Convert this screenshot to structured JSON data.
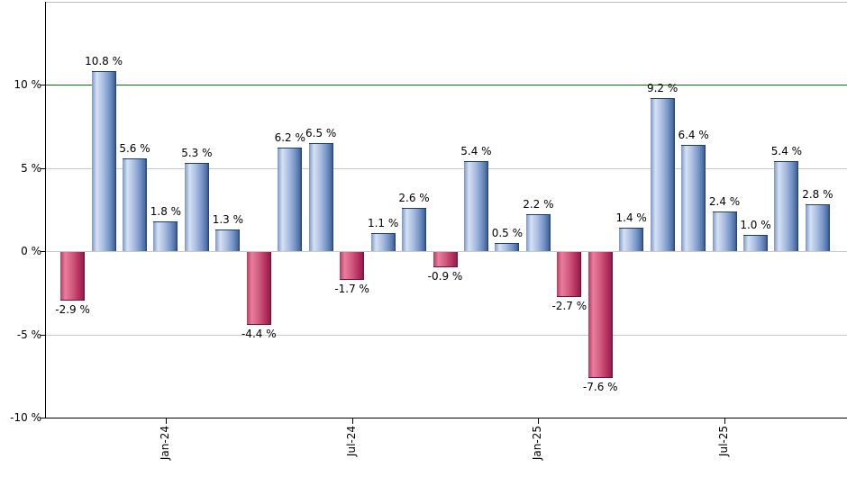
{
  "chart_data": {
    "type": "bar",
    "title": "",
    "xlabel": "",
    "ylabel": "",
    "ylim": [
      -10,
      15
    ],
    "grid": true,
    "values": [
      -2.9,
      10.8,
      5.6,
      1.8,
      5.3,
      1.3,
      -4.4,
      6.2,
      6.5,
      -1.7,
      1.1,
      2.6,
      -0.9,
      5.4,
      0.5,
      2.2,
      -2.7,
      -7.6,
      1.4,
      9.2,
      6.4,
      2.4,
      1.0,
      5.4,
      2.8
    ],
    "bar_labels": [
      "-2.9 %",
      "10.8 %",
      "5.6 %",
      "1.8 %",
      "5.3 %",
      "1.3 %",
      "-4.4 %",
      "6.2 %",
      "6.5 %",
      "-1.7 %",
      "1.1 %",
      "2.6 %",
      "-0.9 %",
      "5.4 %",
      "0.5 %",
      "2.2 %",
      "-2.7 %",
      "-7.6 %",
      "1.4 %",
      "9.2 %",
      "6.4 %",
      "2.4 %",
      "1.0 %",
      "5.4 %",
      "2.8 %"
    ],
    "x_ticks": [
      {
        "index": 3,
        "label": "Jan-24"
      },
      {
        "index": 9,
        "label": "Jul-24"
      },
      {
        "index": 15,
        "label": "Jan-25"
      },
      {
        "index": 21,
        "label": "Jul-25"
      }
    ],
    "y_ticks": [
      {
        "value": 10,
        "label": "10 %"
      },
      {
        "value": 5,
        "label": "5 %"
      },
      {
        "value": 0,
        "label": "0 %"
      },
      {
        "value": -5,
        "label": "-5 %"
      },
      {
        "value": -10,
        "label": "-10 %"
      }
    ],
    "reference_line": {
      "value": 10,
      "color": "#008000"
    },
    "colors": {
      "positive_bar": "#8fa9d6",
      "positive_bar_edge": "#1e3c69",
      "negative_bar": "#c84a70",
      "negative_bar_edge": "#6f0f33",
      "gridline": "#c9c9c9",
      "top_border": "#c0c0c0",
      "axis": "#000000",
      "label_text": "#000000"
    },
    "legend_position": "none"
  }
}
